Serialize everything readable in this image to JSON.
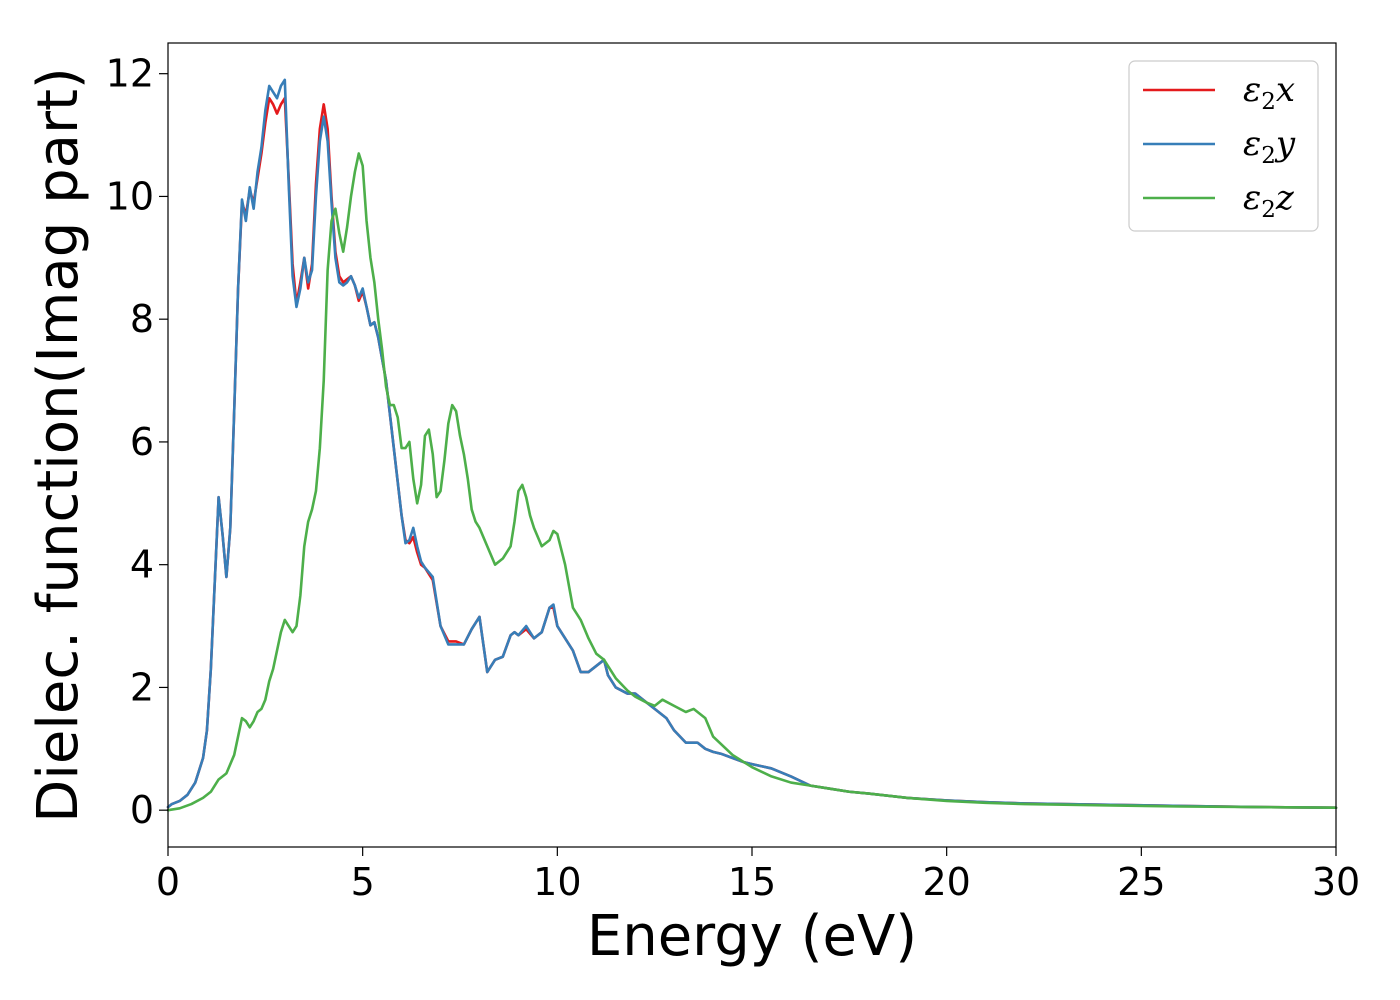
{
  "chart_data": {
    "type": "line",
    "xlabel": "Energy (eV)",
    "ylabel": "Dielec. function(Imag part)",
    "xlim": [
      0,
      30
    ],
    "ylim": [
      -0.6,
      12.5
    ],
    "xticks": [
      0,
      5,
      10,
      15,
      20,
      25,
      30
    ],
    "yticks": [
      0,
      2,
      4,
      6,
      8,
      10,
      12
    ],
    "xtick_labels": [
      "0",
      "5",
      "10",
      "15",
      "20",
      "25",
      "30"
    ],
    "ytick_labels": [
      "0",
      "2",
      "4",
      "6",
      "8",
      "10",
      "12"
    ],
    "grid": false,
    "legend_position": "top-right",
    "series": [
      {
        "name": "ε2x",
        "legend": {
          "base": "ε",
          "sub": "2",
          "var": "x"
        },
        "color": "#e41a1c",
        "x": [
          0,
          0.1,
          0.3,
          0.5,
          0.7,
          0.9,
          1.0,
          1.1,
          1.2,
          1.3,
          1.4,
          1.5,
          1.6,
          1.7,
          1.8,
          1.9,
          2.0,
          2.1,
          2.2,
          2.3,
          2.4,
          2.5,
          2.6,
          2.7,
          2.8,
          2.9,
          3.0,
          3.1,
          3.2,
          3.3,
          3.4,
          3.5,
          3.6,
          3.7,
          3.8,
          3.9,
          4.0,
          4.1,
          4.2,
          4.3,
          4.4,
          4.5,
          4.6,
          4.7,
          4.8,
          4.9,
          5.0,
          5.1,
          5.2,
          5.3,
          5.4,
          5.6,
          5.8,
          6.0,
          6.1,
          6.2,
          6.3,
          6.4,
          6.5,
          6.6,
          6.8,
          7.0,
          7.2,
          7.4,
          7.6,
          7.8,
          8.0,
          8.1,
          8.2,
          8.4,
          8.6,
          8.8,
          8.9,
          9.0,
          9.2,
          9.4,
          9.6,
          9.8,
          9.9,
          10.0,
          10.2,
          10.4,
          10.6,
          10.8,
          11.0,
          11.2,
          11.3,
          11.5,
          11.8,
          12.0,
          12.3,
          12.5,
          12.8,
          13.0,
          13.3,
          13.6,
          13.8,
          14.0,
          14.2,
          14.5,
          14.8,
          15.0,
          15.5,
          16.0,
          16.5,
          17.0,
          17.5,
          18.0,
          19.0,
          20.0,
          21.0,
          22.0,
          24.0,
          26.0,
          28.0,
          30.0
        ],
        "y": [
          0.05,
          0.1,
          0.15,
          0.25,
          0.45,
          0.85,
          1.3,
          2.3,
          3.7,
          5.1,
          4.5,
          3.8,
          4.6,
          6.5,
          8.5,
          9.9,
          9.7,
          10.1,
          9.9,
          10.3,
          10.7,
          11.2,
          11.6,
          11.5,
          11.35,
          11.5,
          11.6,
          10.3,
          8.9,
          8.25,
          8.6,
          9.0,
          8.5,
          8.9,
          10.2,
          11.1,
          11.5,
          11.1,
          10.0,
          9.1,
          8.7,
          8.6,
          8.65,
          8.7,
          8.55,
          8.3,
          8.45,
          8.2,
          7.9,
          7.95,
          7.7,
          7.0,
          5.9,
          4.8,
          4.4,
          4.35,
          4.45,
          4.2,
          4.0,
          3.95,
          3.75,
          3.0,
          2.75,
          2.75,
          2.7,
          2.95,
          3.15,
          2.7,
          2.25,
          2.45,
          2.5,
          2.85,
          2.9,
          2.85,
          2.95,
          2.8,
          2.9,
          3.3,
          3.3,
          3.0,
          2.8,
          2.6,
          2.25,
          2.25,
          2.35,
          2.45,
          2.2,
          2.0,
          1.9,
          1.9,
          1.75,
          1.65,
          1.5,
          1.3,
          1.1,
          1.1,
          1.0,
          0.95,
          0.92,
          0.85,
          0.78,
          0.75,
          0.68,
          0.55,
          0.4,
          0.35,
          0.3,
          0.27,
          0.2,
          0.16,
          0.13,
          0.11,
          0.09,
          0.07,
          0.05,
          0.04
        ]
      },
      {
        "name": "ε2y",
        "legend": {
          "base": "ε",
          "sub": "2",
          "var": "y"
        },
        "color": "#377eb8",
        "x": [
          0,
          0.1,
          0.3,
          0.5,
          0.7,
          0.9,
          1.0,
          1.1,
          1.2,
          1.3,
          1.4,
          1.5,
          1.6,
          1.7,
          1.8,
          1.9,
          2.0,
          2.1,
          2.2,
          2.3,
          2.4,
          2.5,
          2.6,
          2.7,
          2.8,
          2.9,
          3.0,
          3.1,
          3.2,
          3.3,
          3.4,
          3.5,
          3.6,
          3.7,
          3.8,
          3.9,
          4.0,
          4.1,
          4.2,
          4.3,
          4.4,
          4.5,
          4.6,
          4.7,
          4.8,
          4.9,
          5.0,
          5.1,
          5.2,
          5.3,
          5.4,
          5.6,
          5.8,
          6.0,
          6.1,
          6.2,
          6.3,
          6.4,
          6.5,
          6.6,
          6.8,
          7.0,
          7.2,
          7.4,
          7.6,
          7.8,
          8.0,
          8.1,
          8.2,
          8.4,
          8.6,
          8.8,
          8.9,
          9.0,
          9.2,
          9.4,
          9.6,
          9.8,
          9.9,
          10.0,
          10.2,
          10.4,
          10.6,
          10.8,
          11.0,
          11.2,
          11.3,
          11.5,
          11.8,
          12.0,
          12.3,
          12.5,
          12.8,
          13.0,
          13.3,
          13.6,
          13.8,
          14.0,
          14.2,
          14.5,
          14.8,
          15.0,
          15.5,
          16.0,
          16.5,
          17.0,
          17.5,
          18.0,
          19.0,
          20.0,
          21.0,
          22.0,
          24.0,
          26.0,
          28.0,
          30.0
        ],
        "y": [
          0.05,
          0.1,
          0.15,
          0.25,
          0.45,
          0.85,
          1.3,
          2.3,
          3.7,
          5.1,
          4.5,
          3.8,
          4.6,
          6.5,
          8.5,
          9.95,
          9.6,
          10.15,
          9.8,
          10.4,
          10.8,
          11.4,
          11.8,
          11.7,
          11.6,
          11.8,
          11.9,
          10.2,
          8.7,
          8.2,
          8.5,
          9.0,
          8.6,
          8.8,
          10.0,
          10.9,
          11.3,
          10.9,
          9.9,
          9.0,
          8.6,
          8.55,
          8.6,
          8.7,
          8.55,
          8.35,
          8.5,
          8.2,
          7.9,
          7.95,
          7.7,
          7.0,
          5.9,
          4.8,
          4.35,
          4.4,
          4.6,
          4.3,
          4.05,
          3.95,
          3.8,
          3.0,
          2.7,
          2.7,
          2.7,
          2.95,
          3.15,
          2.7,
          2.25,
          2.45,
          2.5,
          2.85,
          2.9,
          2.85,
          3.0,
          2.8,
          2.9,
          3.3,
          3.35,
          3.0,
          2.8,
          2.6,
          2.25,
          2.25,
          2.35,
          2.45,
          2.2,
          2.0,
          1.9,
          1.9,
          1.75,
          1.65,
          1.5,
          1.3,
          1.1,
          1.1,
          1.0,
          0.95,
          0.92,
          0.85,
          0.78,
          0.75,
          0.68,
          0.55,
          0.4,
          0.35,
          0.3,
          0.27,
          0.2,
          0.16,
          0.13,
          0.11,
          0.09,
          0.07,
          0.05,
          0.04
        ]
      },
      {
        "name": "ε2z",
        "legend": {
          "base": "ε",
          "sub": "2",
          "var": "z"
        },
        "color": "#4daf4a",
        "x": [
          0,
          0.3,
          0.6,
          0.9,
          1.1,
          1.3,
          1.5,
          1.7,
          1.8,
          1.9,
          2.0,
          2.1,
          2.2,
          2.3,
          2.4,
          2.5,
          2.6,
          2.7,
          2.8,
          2.9,
          3.0,
          3.1,
          3.2,
          3.3,
          3.4,
          3.5,
          3.6,
          3.7,
          3.8,
          3.9,
          4.0,
          4.1,
          4.2,
          4.3,
          4.4,
          4.5,
          4.6,
          4.7,
          4.8,
          4.9,
          5.0,
          5.1,
          5.2,
          5.3,
          5.4,
          5.5,
          5.6,
          5.7,
          5.8,
          5.9,
          6.0,
          6.1,
          6.2,
          6.3,
          6.4,
          6.5,
          6.6,
          6.7,
          6.8,
          6.9,
          7.0,
          7.1,
          7.2,
          7.3,
          7.4,
          7.5,
          7.6,
          7.7,
          7.8,
          7.9,
          8.0,
          8.2,
          8.4,
          8.6,
          8.8,
          8.9,
          9.0,
          9.1,
          9.2,
          9.3,
          9.4,
          9.6,
          9.8,
          9.9,
          10.0,
          10.2,
          10.4,
          10.6,
          10.8,
          11.0,
          11.2,
          11.5,
          11.8,
          12.0,
          12.3,
          12.5,
          12.7,
          13.0,
          13.3,
          13.5,
          13.8,
          14.0,
          14.5,
          15.0,
          15.5,
          16.0,
          16.5,
          17.0,
          17.5,
          18.0,
          19.0,
          20.0,
          21.0,
          22.0,
          24.0,
          26.0,
          28.0,
          30.0
        ],
        "y": [
          0.0,
          0.03,
          0.1,
          0.2,
          0.3,
          0.5,
          0.6,
          0.9,
          1.2,
          1.5,
          1.45,
          1.35,
          1.45,
          1.6,
          1.65,
          1.8,
          2.1,
          2.3,
          2.6,
          2.9,
          3.1,
          3.0,
          2.9,
          3.0,
          3.5,
          4.3,
          4.7,
          4.9,
          5.2,
          5.9,
          7.0,
          8.8,
          9.6,
          9.8,
          9.4,
          9.1,
          9.5,
          10.0,
          10.4,
          10.7,
          10.5,
          9.6,
          9.0,
          8.6,
          8.0,
          7.5,
          6.9,
          6.6,
          6.6,
          6.4,
          5.9,
          5.9,
          6.0,
          5.4,
          5.0,
          5.3,
          6.1,
          6.2,
          5.8,
          5.1,
          5.2,
          5.7,
          6.3,
          6.6,
          6.5,
          6.1,
          5.8,
          5.4,
          4.9,
          4.7,
          4.6,
          4.3,
          4.0,
          4.1,
          4.3,
          4.7,
          5.2,
          5.3,
          5.1,
          4.8,
          4.6,
          4.3,
          4.4,
          4.55,
          4.5,
          4.0,
          3.3,
          3.1,
          2.8,
          2.55,
          2.45,
          2.15,
          1.95,
          1.85,
          1.75,
          1.7,
          1.8,
          1.7,
          1.6,
          1.65,
          1.5,
          1.2,
          0.9,
          0.7,
          0.55,
          0.45,
          0.4,
          0.35,
          0.3,
          0.27,
          0.2,
          0.15,
          0.12,
          0.1,
          0.08,
          0.06,
          0.05,
          0.04
        ]
      }
    ]
  }
}
